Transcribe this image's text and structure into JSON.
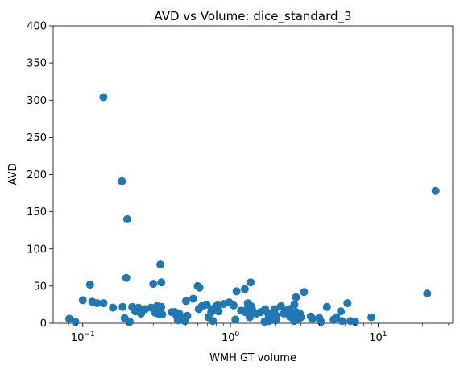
{
  "chart_data": {
    "type": "scatter",
    "title": "AVD vs Volume: dice_standard_3",
    "xlabel": "WMH GT volume",
    "ylabel": "AVD",
    "xscale": "log",
    "xlim": [
      0.063,
      32.0
    ],
    "ylim": [
      0,
      400
    ],
    "grid": false,
    "legend": "none",
    "marker_color": "#1f77b4",
    "x_ticks": [
      {
        "value": 0.1,
        "base": "10",
        "exp": "−1"
      },
      {
        "value": 1,
        "base": "10",
        "exp": "0"
      },
      {
        "value": 10,
        "base": "10",
        "exp": "1"
      }
    ],
    "y_ticks": [
      {
        "value": 0,
        "label": "0"
      },
      {
        "value": 50,
        "label": "50"
      },
      {
        "value": 100,
        "label": "100"
      },
      {
        "value": 150,
        "label": "150"
      },
      {
        "value": 200,
        "label": "200"
      },
      {
        "value": 250,
        "label": "250"
      },
      {
        "value": 300,
        "label": "300"
      },
      {
        "value": 350,
        "label": "350"
      },
      {
        "value": 400,
        "label": "400"
      }
    ],
    "points": [
      {
        "x": 0.081,
        "y": 6
      },
      {
        "x": 0.089,
        "y": 2
      },
      {
        "x": 0.1,
        "y": 31
      },
      {
        "x": 0.112,
        "y": 52
      },
      {
        "x": 0.116,
        "y": 29
      },
      {
        "x": 0.125,
        "y": 27
      },
      {
        "x": 0.138,
        "y": 27
      },
      {
        "x": 0.138,
        "y": 304
      },
      {
        "x": 0.16,
        "y": 21
      },
      {
        "x": 0.184,
        "y": 191
      },
      {
        "x": 0.186,
        "y": 22
      },
      {
        "x": 0.192,
        "y": 7
      },
      {
        "x": 0.197,
        "y": 61
      },
      {
        "x": 0.2,
        "y": 140
      },
      {
        "x": 0.208,
        "y": 2
      },
      {
        "x": 0.216,
        "y": 22
      },
      {
        "x": 0.227,
        "y": 16
      },
      {
        "x": 0.238,
        "y": 21
      },
      {
        "x": 0.248,
        "y": 13
      },
      {
        "x": 0.255,
        "y": 18
      },
      {
        "x": 0.265,
        "y": 19
      },
      {
        "x": 0.29,
        "y": 21
      },
      {
        "x": 0.3,
        "y": 53
      },
      {
        "x": 0.31,
        "y": 14
      },
      {
        "x": 0.318,
        "y": 23
      },
      {
        "x": 0.33,
        "y": 12
      },
      {
        "x": 0.335,
        "y": 79
      },
      {
        "x": 0.34,
        "y": 55
      },
      {
        "x": 0.34,
        "y": 22
      },
      {
        "x": 0.345,
        "y": 12
      },
      {
        "x": 0.4,
        "y": 15
      },
      {
        "x": 0.42,
        "y": 15
      },
      {
        "x": 0.432,
        "y": 10
      },
      {
        "x": 0.44,
        "y": 4
      },
      {
        "x": 0.45,
        "y": 13
      },
      {
        "x": 0.47,
        "y": 8
      },
      {
        "x": 0.49,
        "y": 3
      },
      {
        "x": 0.5,
        "y": 30
      },
      {
        "x": 0.51,
        "y": 10
      },
      {
        "x": 0.56,
        "y": 33
      },
      {
        "x": 0.6,
        "y": 50
      },
      {
        "x": 0.61,
        "y": 19
      },
      {
        "x": 0.617,
        "y": 48
      },
      {
        "x": 0.64,
        "y": 23
      },
      {
        "x": 0.69,
        "y": 25
      },
      {
        "x": 0.71,
        "y": 8
      },
      {
        "x": 0.74,
        "y": 15
      },
      {
        "x": 0.75,
        "y": 19
      },
      {
        "x": 0.76,
        "y": 3
      },
      {
        "x": 0.79,
        "y": 21
      },
      {
        "x": 0.8,
        "y": 23
      },
      {
        "x": 0.82,
        "y": 24
      },
      {
        "x": 0.83,
        "y": 16
      },
      {
        "x": 0.9,
        "y": 26
      },
      {
        "x": 0.98,
        "y": 28
      },
      {
        "x": 1.05,
        "y": 24
      },
      {
        "x": 1.08,
        "y": 5
      },
      {
        "x": 1.1,
        "y": 43
      },
      {
        "x": 1.18,
        "y": 17
      },
      {
        "x": 1.25,
        "y": 46
      },
      {
        "x": 1.26,
        "y": 15
      },
      {
        "x": 1.3,
        "y": 19
      },
      {
        "x": 1.31,
        "y": 27
      },
      {
        "x": 1.33,
        "y": 13
      },
      {
        "x": 1.35,
        "y": 8
      },
      {
        "x": 1.37,
        "y": 55
      },
      {
        "x": 1.38,
        "y": 23
      },
      {
        "x": 1.4,
        "y": 19
      },
      {
        "x": 1.5,
        "y": 13
      },
      {
        "x": 1.6,
        "y": 15
      },
      {
        "x": 1.7,
        "y": 2
      },
      {
        "x": 1.72,
        "y": 19
      },
      {
        "x": 1.8,
        "y": 13
      },
      {
        "x": 1.82,
        "y": 8
      },
      {
        "x": 1.83,
        "y": 3
      },
      {
        "x": 1.9,
        "y": 5
      },
      {
        "x": 1.95,
        "y": 15
      },
      {
        "x": 2.0,
        "y": 19
      },
      {
        "x": 2.03,
        "y": 4
      },
      {
        "x": 2.05,
        "y": 10
      },
      {
        "x": 2.2,
        "y": 23
      },
      {
        "x": 2.3,
        "y": 13
      },
      {
        "x": 2.4,
        "y": 17
      },
      {
        "x": 2.5,
        "y": 19
      },
      {
        "x": 2.52,
        "y": 9
      },
      {
        "x": 2.6,
        "y": 11
      },
      {
        "x": 2.7,
        "y": 3
      },
      {
        "x": 2.71,
        "y": 25
      },
      {
        "x": 2.78,
        "y": 35
      },
      {
        "x": 2.79,
        "y": 15
      },
      {
        "x": 2.9,
        "y": 6
      },
      {
        "x": 2.95,
        "y": 13
      },
      {
        "x": 3.0,
        "y": 8
      },
      {
        "x": 3.15,
        "y": 42
      },
      {
        "x": 3.5,
        "y": 9
      },
      {
        "x": 3.6,
        "y": 6
      },
      {
        "x": 4.0,
        "y": 7
      },
      {
        "x": 4.1,
        "y": 2
      },
      {
        "x": 4.5,
        "y": 22
      },
      {
        "x": 5.0,
        "y": 5
      },
      {
        "x": 5.2,
        "y": 8
      },
      {
        "x": 5.6,
        "y": 16
      },
      {
        "x": 5.7,
        "y": 3
      },
      {
        "x": 6.2,
        "y": 27
      },
      {
        "x": 6.5,
        "y": 3
      },
      {
        "x": 7.0,
        "y": 2
      },
      {
        "x": 9.0,
        "y": 8
      },
      {
        "x": 21.5,
        "y": 40
      },
      {
        "x": 24.5,
        "y": 178
      }
    ]
  }
}
